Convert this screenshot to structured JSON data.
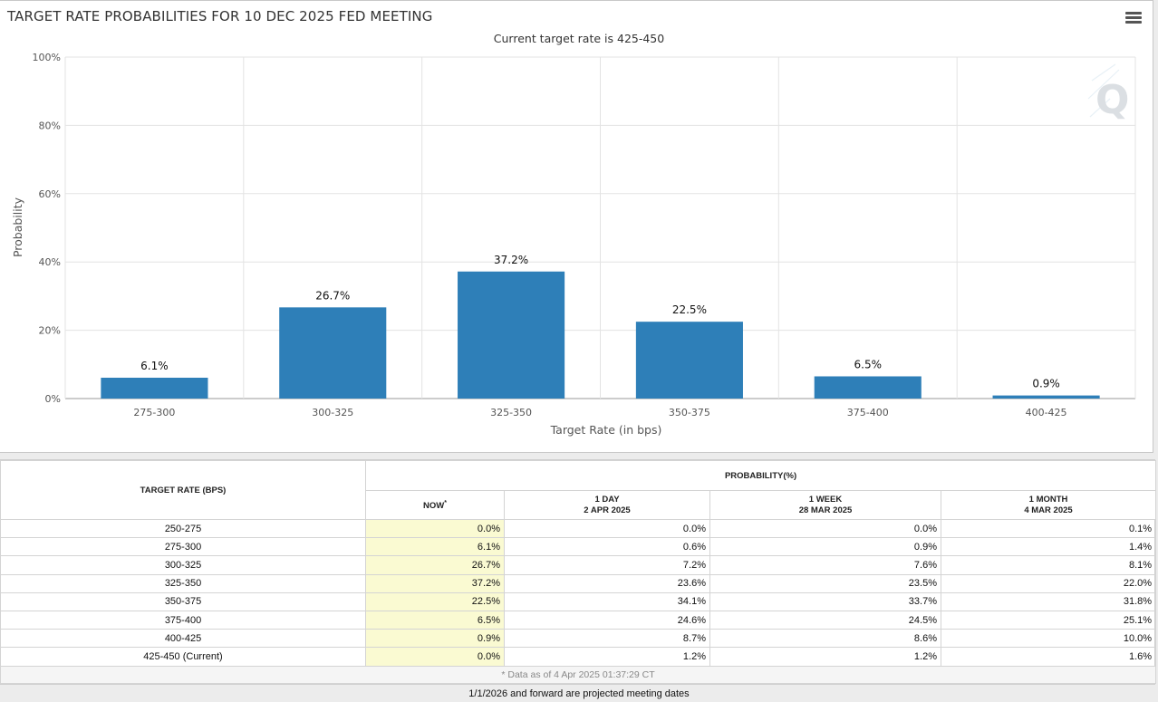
{
  "chart": {
    "title": "TARGET RATE PROBABILITIES FOR 10 DEC 2025 FED MEETING",
    "subtitle": "Current target rate is 425-450"
  },
  "chart_data": {
    "type": "bar",
    "categories": [
      "275-300",
      "300-325",
      "325-350",
      "350-375",
      "375-400",
      "400-425"
    ],
    "values": [
      6.1,
      26.7,
      37.2,
      22.5,
      6.5,
      0.9
    ],
    "data_labels": [
      "6.1%",
      "26.7%",
      "37.2%",
      "22.5%",
      "6.5%",
      "0.9%"
    ],
    "xlabel": "Target Rate (in bps)",
    "ylabel": "Probability",
    "ylim": [
      0,
      100
    ],
    "yticks": [
      0,
      20,
      40,
      60,
      80,
      100
    ],
    "ytick_labels": [
      "0%",
      "20%",
      "40%",
      "60%",
      "80%",
      "100%"
    ],
    "grid": true,
    "bar_color": "#2e7fb8"
  },
  "table": {
    "col_target": "TARGET RATE (BPS)",
    "group_header": "PROBABILITY(%)",
    "col_now": "NOW",
    "col_now_mark": "*",
    "col_1day": {
      "line1": "1 DAY",
      "line2": "2 APR 2025"
    },
    "col_1week": {
      "line1": "1 WEEK",
      "line2": "28 MAR 2025"
    },
    "col_1month": {
      "line1": "1 MONTH",
      "line2": "4 MAR 2025"
    },
    "rows": [
      [
        "250-275",
        "0.0%",
        "0.0%",
        "0.0%",
        "0.1%"
      ],
      [
        "275-300",
        "6.1%",
        "0.6%",
        "0.9%",
        "1.4%"
      ],
      [
        "300-325",
        "26.7%",
        "7.2%",
        "7.6%",
        "8.1%"
      ],
      [
        "325-350",
        "37.2%",
        "23.6%",
        "23.5%",
        "22.0%"
      ],
      [
        "350-375",
        "22.5%",
        "34.1%",
        "33.7%",
        "31.8%"
      ],
      [
        "375-400",
        "6.5%",
        "24.6%",
        "24.5%",
        "25.1%"
      ],
      [
        "400-425",
        "0.9%",
        "8.7%",
        "8.6%",
        "10.0%"
      ],
      [
        "425-450 (Current)",
        "0.0%",
        "1.2%",
        "1.2%",
        "1.6%"
      ]
    ],
    "footnote": "* Data as of 4 Apr 2025 01:37:29 CT",
    "now_highlight_color": "#fafad2"
  },
  "bottom_note": "1/1/2026 and forward are projected meeting dates",
  "icons": {
    "menu": "hamburger-menu-icon",
    "watermark": "q-logo-watermark-icon"
  }
}
